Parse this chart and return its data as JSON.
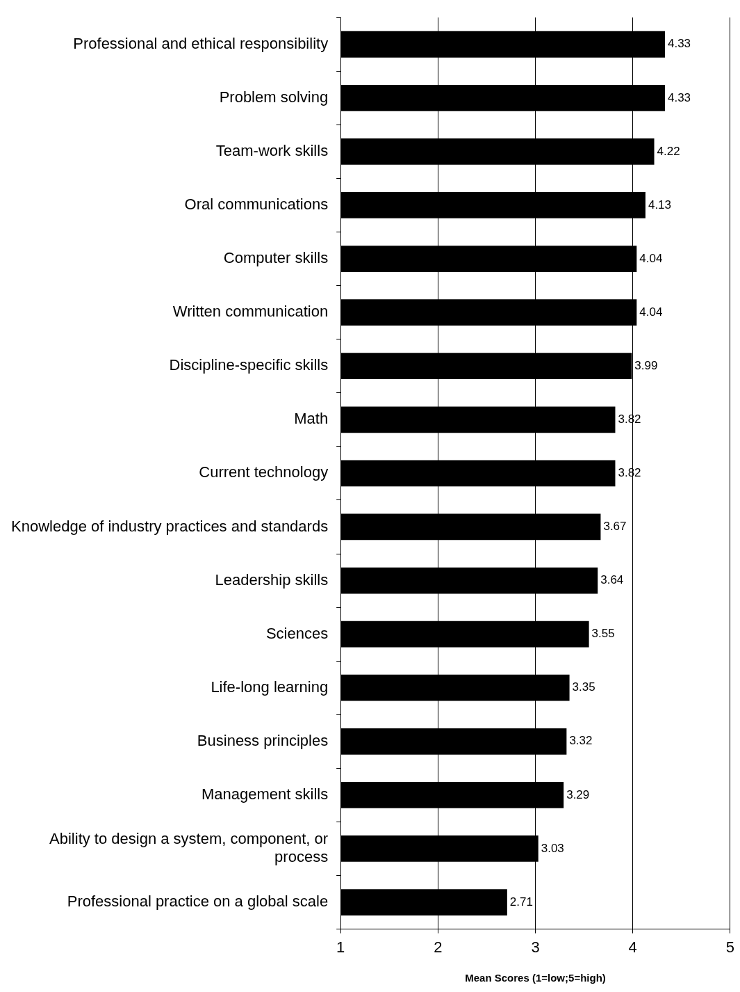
{
  "chart_data": {
    "type": "bar",
    "orientation": "horizontal",
    "xlabel": "Mean Scores (1=low;5=high)",
    "categories": [
      "Professional and ethical responsibility",
      "Problem solving",
      "Team-work skills",
      "Oral communications",
      "Computer skills",
      "Written communication",
      "Discipline-specific skills",
      "Math",
      "Current technology",
      "Knowledge of industry practices and standards",
      "Leadership skills",
      "Sciences",
      "Life-long learning",
      "Business principles",
      "Management skills",
      "Ability to design a system, component, or process",
      "Professional practice on a global scale"
    ],
    "values": [
      4.33,
      4.33,
      4.22,
      4.13,
      4.04,
      4.04,
      3.99,
      3.82,
      3.82,
      3.67,
      3.64,
      3.55,
      3.35,
      3.32,
      3.29,
      3.03,
      2.71
    ],
    "color": "#000000",
    "xlim": [
      1,
      5
    ],
    "xticks": [
      1,
      2,
      3,
      4,
      5
    ],
    "grid": "x",
    "data_labels": true,
    "legend": false
  }
}
